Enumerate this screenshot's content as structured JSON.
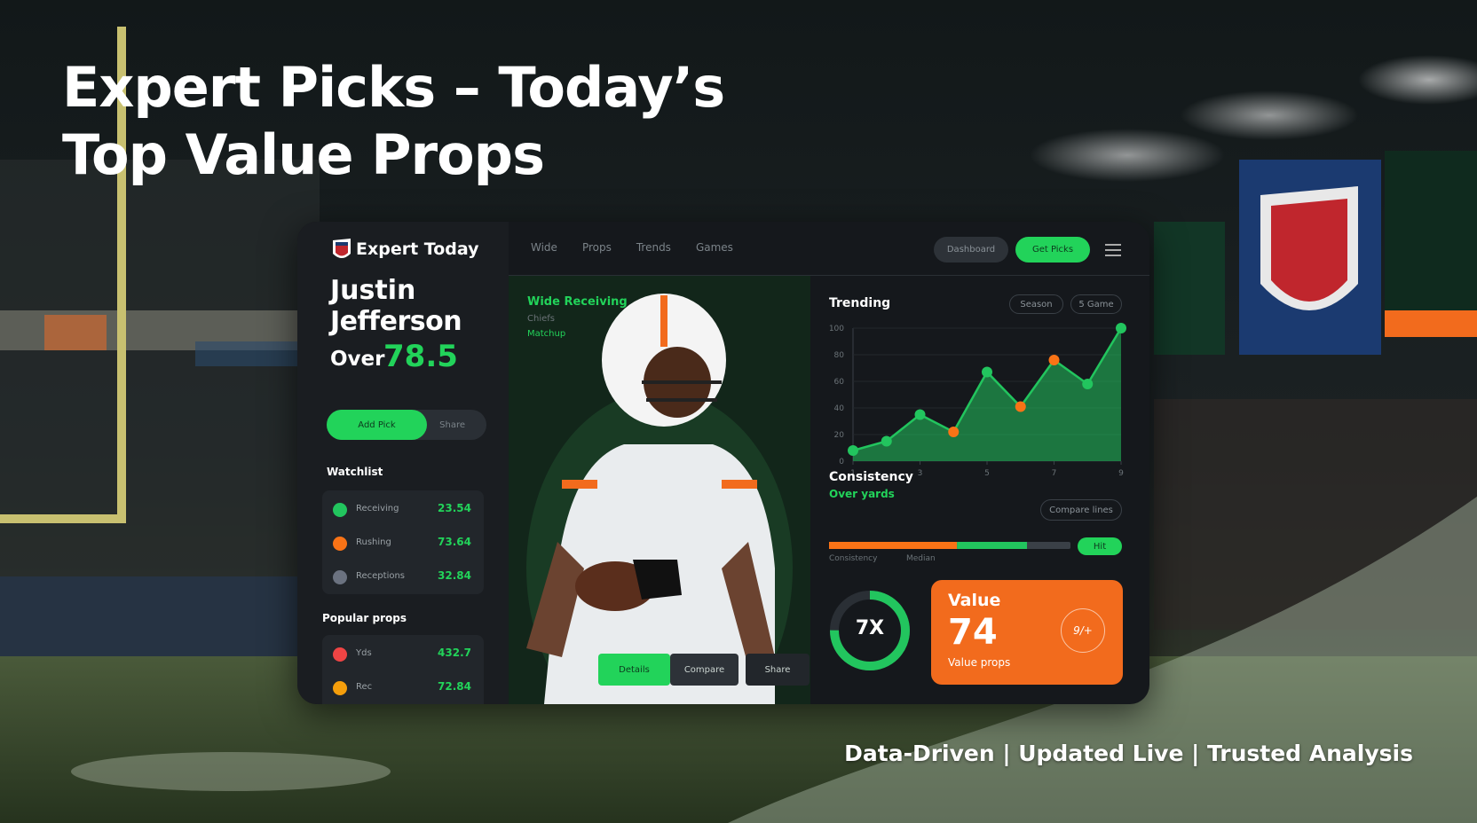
{
  "header": {
    "title_line1": "Expert Picks – Today’s",
    "title_line2": "Top Value Props"
  },
  "app": {
    "brand": "Expert Today",
    "nav": [
      "Wide",
      "Props",
      "Trends",
      "Games"
    ],
    "top_buttons": [
      "Dashboard",
      "Get Picks"
    ]
  },
  "pick": {
    "player_first": "Justin",
    "player_last": "Jefferson",
    "line_label": "Over",
    "line": "78.5",
    "buttons": [
      "Add Pick",
      "Share"
    ]
  },
  "watchlist": {
    "title": "Watchlist",
    "items": [
      {
        "name": "Receiving",
        "value": "23.54",
        "color": "#22c55e"
      },
      {
        "name": "Rushing",
        "value": "73.64",
        "color": "#f97316"
      },
      {
        "name": "Receptions",
        "value": "32.84",
        "color": "#6b7280"
      }
    ]
  },
  "props": {
    "title": "Popular props",
    "items": [
      {
        "name": "Yds",
        "value": "432.7",
        "color": "#ef4444"
      },
      {
        "name": "Rec",
        "value": "72.84",
        "color": "#f59e0b"
      }
    ]
  },
  "player_card": {
    "title": "Wide Receiving",
    "subtitle": "Chiefs",
    "tag": "Matchup",
    "buttons": [
      "Details",
      "Compare",
      "Share"
    ]
  },
  "trend_chart": {
    "type": "line",
    "title": "Trending",
    "filters": [
      "Season",
      "5 Game"
    ],
    "x": [
      1,
      2,
      3,
      4,
      5,
      6,
      7,
      8,
      9
    ],
    "xlim": [
      1,
      9
    ],
    "xticks": [
      1,
      3,
      5,
      7,
      9
    ],
    "ylim": [
      0,
      100
    ],
    "yticks": [
      0,
      20,
      40,
      60,
      80,
      100
    ],
    "series": [
      {
        "color": "#22c55e",
        "values": [
          8,
          15,
          35,
          22,
          67,
          41,
          76,
          58,
          100
        ]
      }
    ],
    "point_colors": [
      "#22c55e",
      "#22c55e",
      "#22c55e",
      "#f97316",
      "#22c55e",
      "#f97316",
      "#f97316",
      "#22c55e",
      "#22c55e"
    ]
  },
  "consistency": {
    "title": "Consistency",
    "subtitle": "Over yards",
    "button": "Compare lines",
    "badge": "Hit",
    "labels": [
      "Consistency",
      "Median"
    ],
    "max": 100,
    "segments": [
      {
        "color": "#f97316",
        "value": 53
      },
      {
        "color": "#22c55e",
        "value": 29
      }
    ]
  },
  "ring": {
    "label": "7X",
    "value": 75,
    "max": 100,
    "color": "#22c55e"
  },
  "value_card": {
    "title": "Value",
    "score": "74",
    "caption": "Value props",
    "badge": "9/+"
  },
  "footer": {
    "tagline": "Data-Driven | Updated Live | Trusted Analysis"
  }
}
